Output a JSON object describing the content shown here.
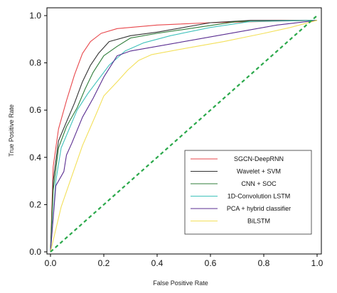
{
  "chart_data": {
    "type": "line",
    "title": "",
    "xlabel": "False Positive Rate",
    "ylabel": "True Positive Rate",
    "xlim": [
      0,
      1
    ],
    "ylim": [
      0,
      1
    ],
    "xticks": [
      "0.0",
      "0.2",
      "0.4",
      "0.6",
      "0.8",
      "1.0"
    ],
    "yticks": [
      "0.0",
      "0.2",
      "0.4",
      "0.6",
      "0.8",
      "1.0"
    ],
    "grid": false,
    "legend_position": "lower-right",
    "series": [
      {
        "name": "SGCN-DeepRNN",
        "color": "#e8474b",
        "points": [
          [
            0,
            0
          ],
          [
            0.01,
            0.36
          ],
          [
            0.03,
            0.52
          ],
          [
            0.06,
            0.64
          ],
          [
            0.09,
            0.75
          ],
          [
            0.12,
            0.84
          ],
          [
            0.15,
            0.89
          ],
          [
            0.19,
            0.925
          ],
          [
            0.25,
            0.945
          ],
          [
            0.4,
            0.96
          ],
          [
            0.6,
            0.97
          ],
          [
            0.8,
            0.975
          ],
          [
            1,
            0.98
          ]
        ]
      },
      {
        "name": "Wavelet + SVM",
        "color": "#333333",
        "points": [
          [
            0,
            0
          ],
          [
            0.01,
            0.3
          ],
          [
            0.03,
            0.47
          ],
          [
            0.06,
            0.55
          ],
          [
            0.09,
            0.63
          ],
          [
            0.12,
            0.72
          ],
          [
            0.15,
            0.79
          ],
          [
            0.18,
            0.84
          ],
          [
            0.22,
            0.89
          ],
          [
            0.3,
            0.915
          ],
          [
            0.4,
            0.93
          ],
          [
            0.6,
            0.97
          ],
          [
            0.75,
            0.98
          ],
          [
            1,
            0.98
          ]
        ]
      },
      {
        "name": "CNN + SOC",
        "color": "#2f7d3a",
        "points": [
          [
            0,
            0
          ],
          [
            0.01,
            0.26
          ],
          [
            0.03,
            0.44
          ],
          [
            0.06,
            0.53
          ],
          [
            0.1,
            0.61
          ],
          [
            0.13,
            0.69
          ],
          [
            0.16,
            0.76
          ],
          [
            0.2,
            0.83
          ],
          [
            0.25,
            0.87
          ],
          [
            0.3,
            0.905
          ],
          [
            0.4,
            0.925
          ],
          [
            0.55,
            0.95
          ],
          [
            0.7,
            0.975
          ],
          [
            1,
            0.98
          ]
        ]
      },
      {
        "name": "1D-Convolution LSTM",
        "color": "#3fc1bb",
        "points": [
          [
            0,
            0
          ],
          [
            0.02,
            0.3
          ],
          [
            0.04,
            0.44
          ],
          [
            0.07,
            0.52
          ],
          [
            0.1,
            0.6
          ],
          [
            0.14,
            0.67
          ],
          [
            0.18,
            0.73
          ],
          [
            0.22,
            0.79
          ],
          [
            0.28,
            0.85
          ],
          [
            0.35,
            0.885
          ],
          [
            0.45,
            0.915
          ],
          [
            0.6,
            0.95
          ],
          [
            0.75,
            0.975
          ],
          [
            1,
            0.98
          ]
        ]
      },
      {
        "name": "PCA + hybrid classifier",
        "color": "#5a2e91",
        "points": [
          [
            0,
            0
          ],
          [
            0.02,
            0.28
          ],
          [
            0.05,
            0.34
          ],
          [
            0.06,
            0.41
          ],
          [
            0.08,
            0.46
          ],
          [
            0.12,
            0.57
          ],
          [
            0.16,
            0.65
          ],
          [
            0.2,
            0.74
          ],
          [
            0.25,
            0.83
          ],
          [
            0.3,
            0.85
          ],
          [
            0.4,
            0.87
          ],
          [
            0.55,
            0.9
          ],
          [
            0.7,
            0.93
          ],
          [
            0.85,
            0.96
          ],
          [
            1,
            0.98
          ]
        ]
      },
      {
        "name": "BiLSTM",
        "color": "#f3e05a",
        "points": [
          [
            0,
            0
          ],
          [
            0.04,
            0.19
          ],
          [
            0.08,
            0.32
          ],
          [
            0.12,
            0.45
          ],
          [
            0.17,
            0.58
          ],
          [
            0.2,
            0.66
          ],
          [
            0.25,
            0.72
          ],
          [
            0.29,
            0.77
          ],
          [
            0.33,
            0.81
          ],
          [
            0.38,
            0.835
          ],
          [
            0.5,
            0.86
          ],
          [
            0.65,
            0.89
          ],
          [
            0.8,
            0.925
          ],
          [
            0.9,
            0.95
          ],
          [
            1,
            0.98
          ]
        ]
      },
      {
        "name": "",
        "color": "#2aa84a",
        "dashed": true,
        "points": [
          [
            0,
            0
          ],
          [
            1,
            1
          ]
        ]
      }
    ]
  }
}
